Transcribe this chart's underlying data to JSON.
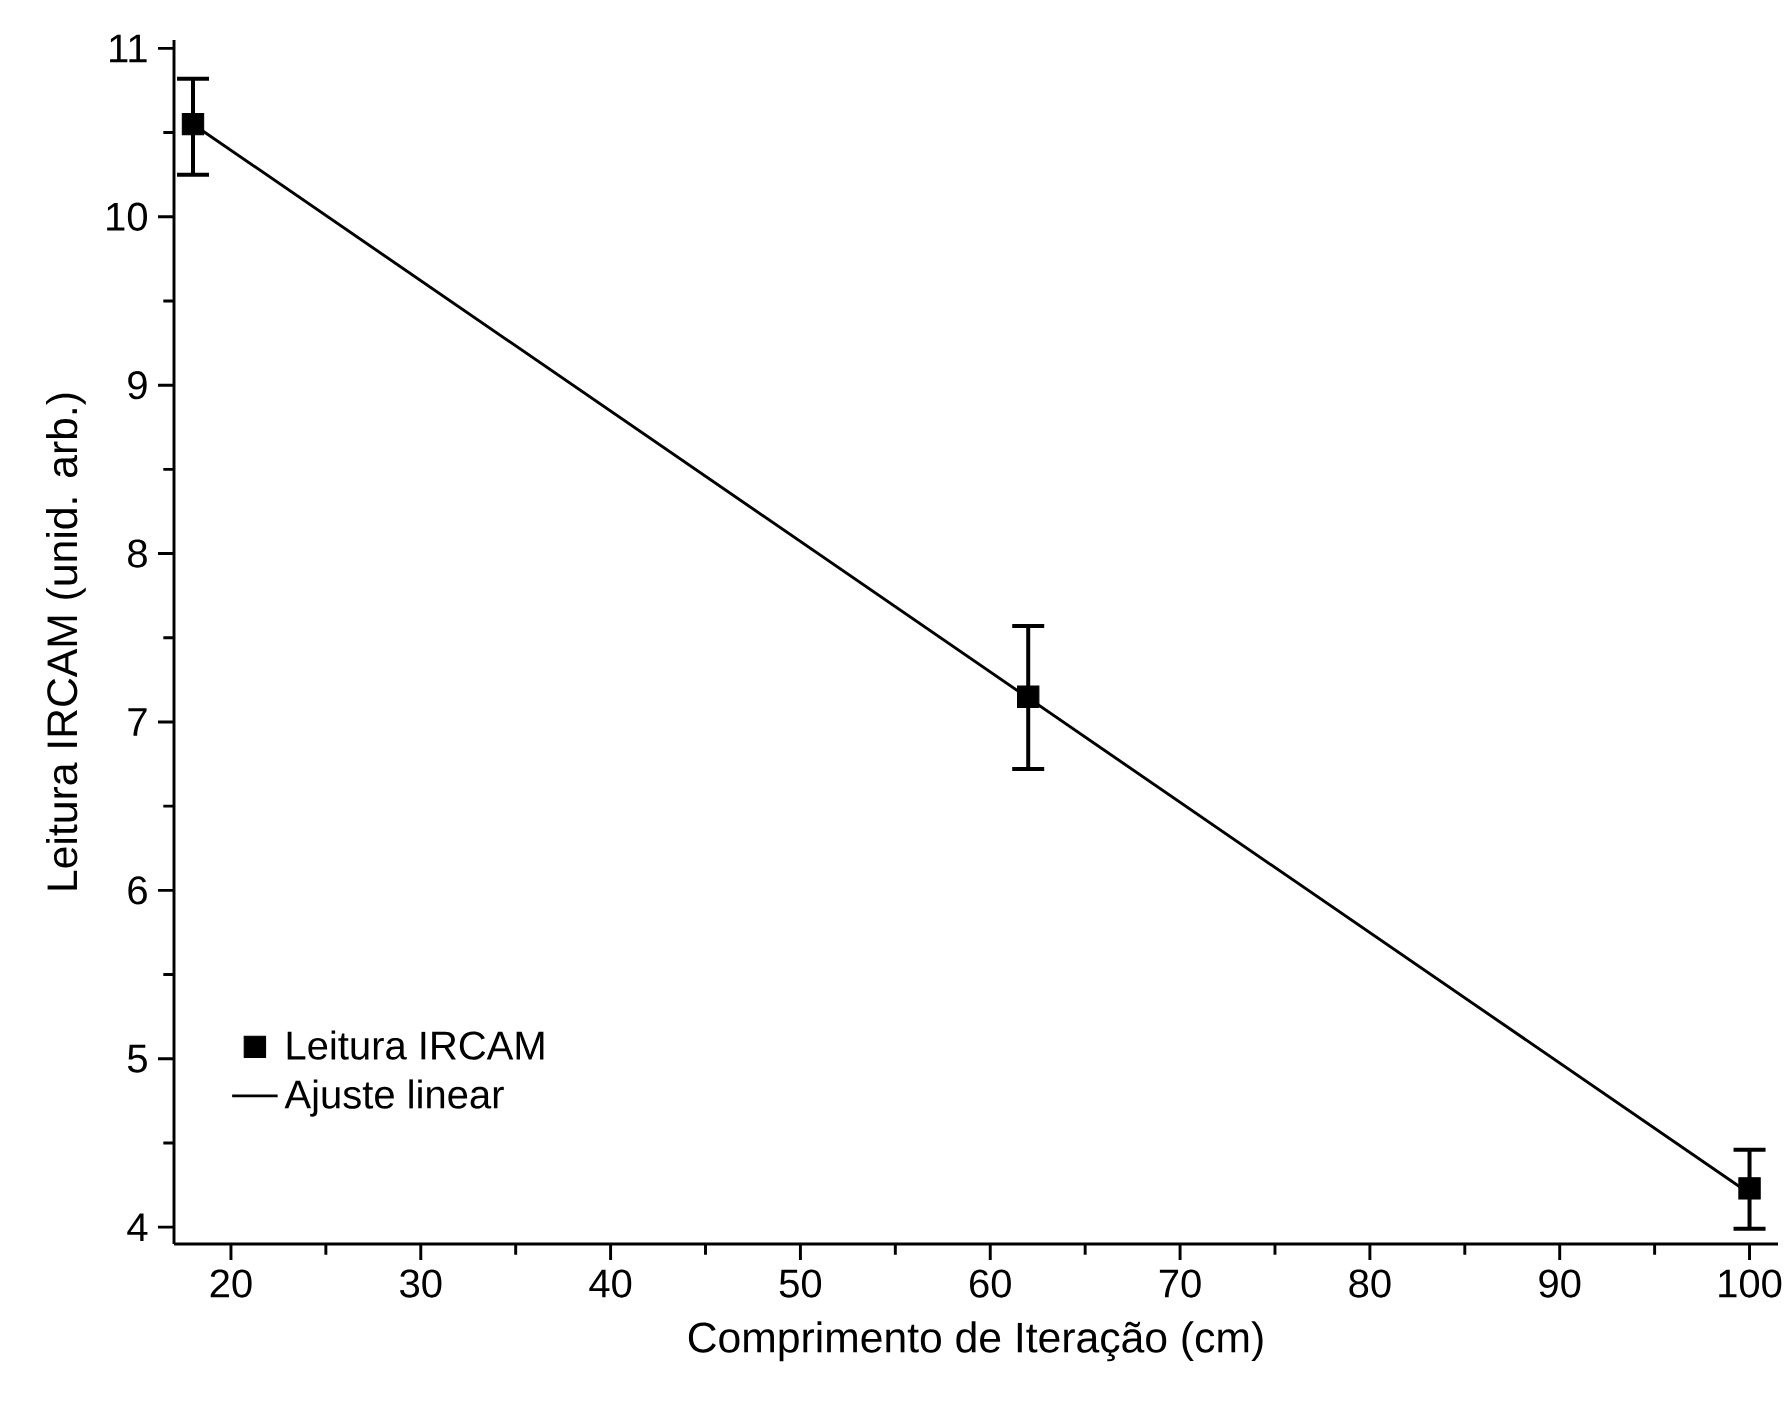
{
  "chart_data": {
    "type": "scatter",
    "xlabel": "Comprimento de Iteração (cm)",
    "ylabel": "Leitura IRCAM (unid. arb.)",
    "xlim": [
      17,
      101.5
    ],
    "ylim": [
      3.9,
      11.05
    ],
    "xticks": [
      20,
      30,
      40,
      50,
      60,
      70,
      80,
      90,
      100
    ],
    "yticks": [
      4,
      5,
      6,
      7,
      8,
      9,
      10,
      11
    ],
    "legend": "bottom left",
    "grid": false,
    "series": [
      {
        "name": "Leitura IRCAM",
        "color": "#000000",
        "marker": "square",
        "x": [
          18,
          62,
          100
        ],
        "values": [
          10.55,
          7.15,
          4.23
        ],
        "errors": [
          [
            10.25,
            10.82
          ],
          [
            6.72,
            7.57
          ],
          [
            3.99,
            4.46
          ]
        ]
      },
      {
        "name": "Ajuste linear",
        "type": "line",
        "color": "#000000",
        "line_style": "solid",
        "marker": "none",
        "x": [
          18,
          100
        ],
        "values": [
          10.55,
          4.2
        ]
      }
    ]
  }
}
